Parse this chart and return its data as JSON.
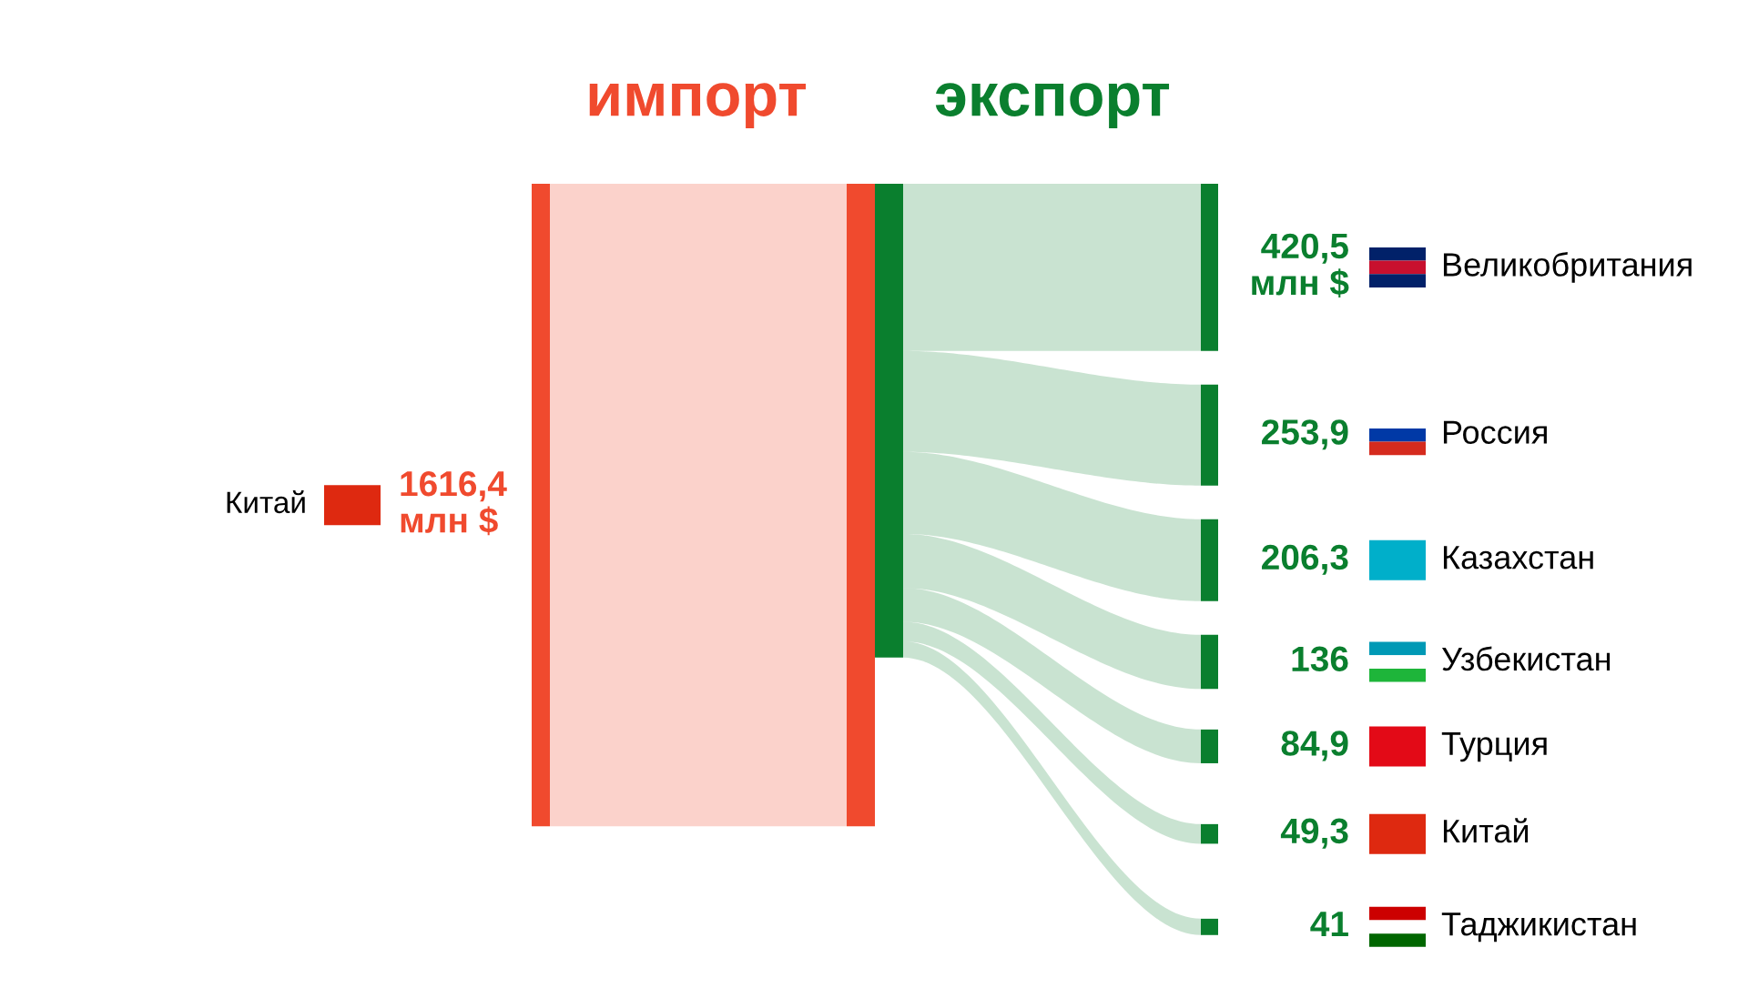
{
  "chart_data": {
    "type": "other",
    "categories": [
      "Китай",
      "Великобритания",
      "Россия",
      "Казахстан",
      "Узбекистан",
      "Турция",
      "Китай",
      "Таджикистан"
    ],
    "series": [
      {
        "name": "импорт",
        "color": "#f04a2e",
        "values": [
          1616.4,
          null,
          null,
          null,
          null,
          null,
          null,
          null
        ],
        "value_labels": [
          "1616,4",
          null,
          null,
          null,
          null,
          null,
          null,
          null
        ]
      },
      {
        "name": "экспорт",
        "color": "#0a7f2e",
        "values": [
          null,
          420.5,
          253.9,
          206.3,
          136,
          84.9,
          49.3,
          41
        ],
        "value_labels": [
          null,
          "420,5",
          "253,9",
          "206,3",
          "136",
          "84,9",
          "49,3",
          "41"
        ]
      }
    ],
    "annotations": [
      "млн $",
      "млн $"
    ]
  }
}
